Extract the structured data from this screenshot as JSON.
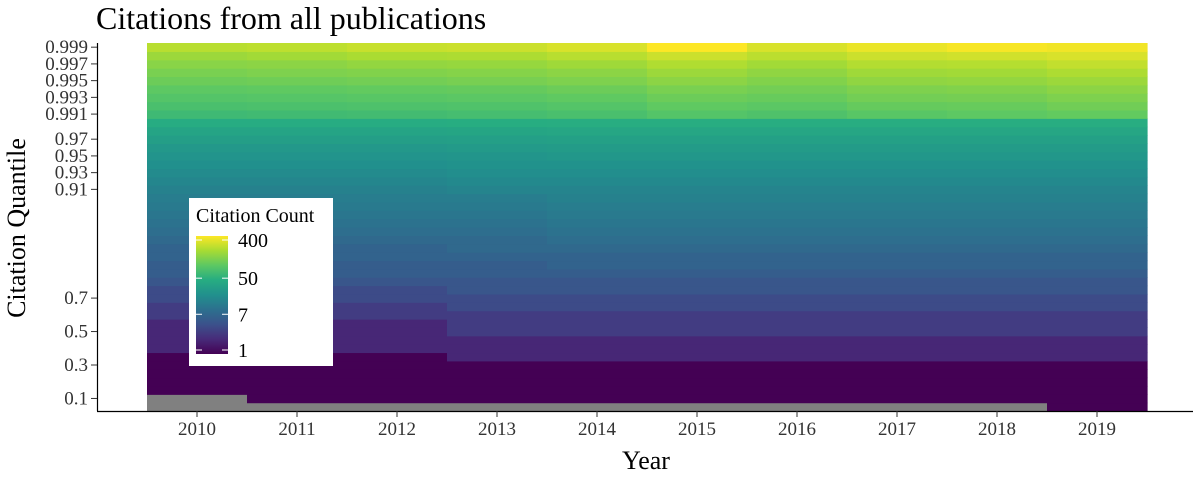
{
  "chart_data": {
    "type": "heatmap",
    "title": "Citations from all publications",
    "xlabel": "Year",
    "ylabel": "Citation Quantile",
    "x_categories": [
      "2010",
      "2011",
      "2012",
      "2013",
      "2014",
      "2015",
      "2016",
      "2017",
      "2018",
      "2019"
    ],
    "y_quantiles": [
      0.05,
      0.1,
      0.15,
      0.2,
      0.25,
      0.3,
      0.35,
      0.4,
      0.45,
      0.5,
      0.55,
      0.6,
      0.65,
      0.7,
      0.75,
      0.8,
      0.81,
      0.82,
      0.83,
      0.84,
      0.85,
      0.86,
      0.87,
      0.88,
      0.89,
      0.9,
      0.91,
      0.92,
      0.93,
      0.94,
      0.95,
      0.96,
      0.97,
      0.98,
      0.99,
      0.991,
      0.992,
      0.993,
      0.994,
      0.995,
      0.996,
      0.997,
      0.998,
      0.999
    ],
    "y_tick_labels": [
      "0.1",
      "0.3",
      "0.5",
      "0.7",
      "0.91",
      "0.93",
      "0.95",
      "0.97",
      "0.991",
      "0.993",
      "0.995",
      "0.997",
      "0.999"
    ],
    "y_tick_quantiles": [
      0.1,
      0.3,
      0.5,
      0.7,
      0.91,
      0.93,
      0.95,
      0.97,
      0.991,
      0.993,
      0.995,
      0.997,
      0.999
    ],
    "values": [
      [
        0,
        0,
        1,
        1,
        1,
        1,
        1,
        2,
        2,
        2,
        2,
        3,
        3,
        4,
        4,
        5,
        6,
        6,
        7,
        7,
        8,
        9,
        10,
        11,
        12,
        13,
        14,
        16,
        18,
        20,
        22,
        25,
        29,
        34,
        42,
        60,
        70,
        80,
        90,
        105,
        120,
        140,
        170,
        220
      ],
      [
        0,
        1,
        1,
        1,
        1,
        1,
        1,
        2,
        2,
        2,
        2,
        3,
        3,
        4,
        4,
        5,
        6,
        6,
        7,
        7,
        8,
        9,
        10,
        11,
        12,
        13,
        14,
        16,
        18,
        20,
        22,
        25,
        29,
        34,
        42,
        62,
        72,
        82,
        92,
        108,
        125,
        145,
        180,
        230
      ],
      [
        0,
        1,
        1,
        1,
        1,
        1,
        1,
        2,
        2,
        2,
        2,
        3,
        3,
        4,
        4,
        5,
        6,
        6,
        7,
        7,
        8,
        9,
        10,
        11,
        12,
        13,
        14,
        16,
        18,
        20,
        22,
        25,
        29,
        34,
        42,
        64,
        74,
        85,
        95,
        112,
        130,
        155,
        195,
        250
      ],
      [
        0,
        1,
        1,
        1,
        1,
        1,
        2,
        2,
        2,
        3,
        3,
        3,
        4,
        4,
        5,
        5,
        6,
        6,
        7,
        8,
        8,
        9,
        10,
        11,
        12,
        13,
        15,
        17,
        19,
        21,
        23,
        26,
        30,
        35,
        43,
        66,
        76,
        88,
        98,
        118,
        135,
        160,
        200,
        260
      ],
      [
        0,
        1,
        1,
        1,
        1,
        1,
        2,
        2,
        2,
        3,
        3,
        3,
        4,
        4,
        5,
        5,
        6,
        7,
        7,
        8,
        9,
        10,
        11,
        12,
        13,
        14,
        15,
        17,
        19,
        21,
        24,
        27,
        31,
        36,
        44,
        70,
        80,
        92,
        105,
        125,
        145,
        175,
        220,
        290
      ],
      [
        0,
        1,
        1,
        1,
        1,
        1,
        2,
        2,
        2,
        3,
        3,
        3,
        4,
        4,
        5,
        5,
        6,
        7,
        7,
        8,
        9,
        10,
        11,
        12,
        13,
        14,
        15,
        17,
        19,
        21,
        24,
        27,
        31,
        36,
        44,
        80,
        92,
        105,
        120,
        145,
        170,
        205,
        260,
        400
      ],
      [
        0,
        1,
        1,
        1,
        1,
        1,
        2,
        2,
        2,
        3,
        3,
        3,
        4,
        4,
        5,
        5,
        6,
        7,
        7,
        8,
        9,
        10,
        11,
        12,
        13,
        14,
        15,
        17,
        19,
        21,
        24,
        27,
        31,
        36,
        44,
        75,
        88,
        100,
        112,
        130,
        150,
        180,
        225,
        290
      ],
      [
        0,
        1,
        1,
        1,
        1,
        1,
        2,
        2,
        2,
        3,
        3,
        3,
        4,
        4,
        5,
        5,
        6,
        7,
        7,
        8,
        9,
        10,
        11,
        12,
        13,
        14,
        15,
        17,
        19,
        21,
        24,
        27,
        31,
        36,
        44,
        85,
        98,
        112,
        125,
        150,
        175,
        210,
        260,
        340
      ],
      [
        0,
        1,
        1,
        1,
        1,
        1,
        2,
        2,
        2,
        3,
        3,
        3,
        4,
        4,
        5,
        5,
        6,
        7,
        7,
        8,
        9,
        10,
        11,
        12,
        13,
        14,
        15,
        17,
        19,
        21,
        24,
        27,
        31,
        36,
        44,
        90,
        100,
        115,
        130,
        155,
        180,
        215,
        270,
        380
      ],
      [
        1,
        1,
        1,
        1,
        1,
        1,
        2,
        2,
        2,
        3,
        3,
        3,
        4,
        4,
        5,
        5,
        6,
        7,
        7,
        8,
        9,
        10,
        11,
        12,
        13,
        14,
        15,
        17,
        19,
        21,
        24,
        27,
        31,
        36,
        44,
        95,
        110,
        125,
        145,
        170,
        200,
        240,
        290,
        360
      ]
    ],
    "legend": {
      "title": "Citation Count",
      "ticks": [
        400,
        50,
        7,
        1
      ],
      "scale": "log",
      "range": [
        1,
        400
      ],
      "placement": "inside-left"
    },
    "colors": {
      "zero": "#808080",
      "palette": "viridis",
      "grid": "none"
    }
  }
}
